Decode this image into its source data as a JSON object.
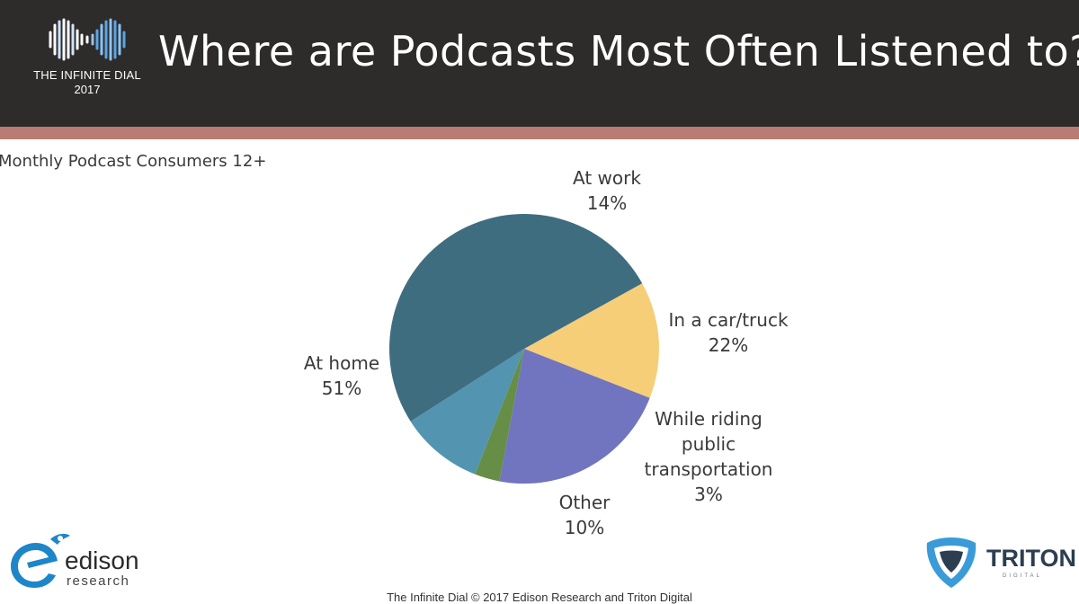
{
  "header": {
    "brand_name": "THE INFINITE DIAL",
    "brand_year": "2017",
    "title": "Where are Podcasts Most Often Listened to?"
  },
  "subtitle": "Monthly  Podcast  Consumers  12+",
  "chart_data": {
    "type": "pie",
    "title": "Where are Podcasts Most Often Listened to?",
    "subtitle": "Monthly  Podcast  Consumers  12+",
    "slices": [
      {
        "label_lines": [
          "At work"
        ],
        "value": 14,
        "value_label": "14%",
        "color": "#f6ce78"
      },
      {
        "label_lines": [
          "In a car/truck"
        ],
        "value": 22,
        "value_label": "22%",
        "color": "#7174bf"
      },
      {
        "label_lines": [
          "While riding",
          "public",
          "transportation"
        ],
        "value": 3,
        "value_label": "3%",
        "color": "#668e47"
      },
      {
        "label_lines": [
          "Other"
        ],
        "value": 10,
        "value_label": "10%",
        "color": "#5394b0"
      },
      {
        "label_lines": [
          "At home"
        ],
        "value": 51,
        "value_label": "51%",
        "color": "#3f6d80"
      }
    ],
    "start_angle_deg": -29,
    "legend": "none"
  },
  "logos": {
    "edison_name": "edison",
    "edison_sub": "research",
    "triton_name": "TRITON",
    "triton_sub": "DIGITAL"
  },
  "footer": "The Infinite Dial   © 2017 Edison Research and Triton Digital"
}
